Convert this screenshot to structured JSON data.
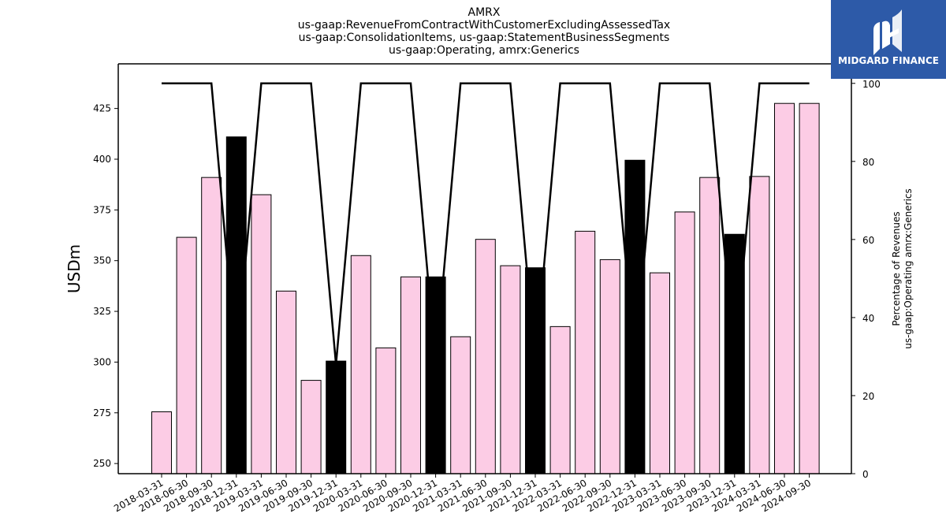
{
  "title_lines": [
    "AMRX",
    "us-gaap:RevenueFromContractWithCustomerExcludingAssessedTax",
    "us-gaap:ConsolidationItems, us-gaap:StatementBusinessSegments",
    "us-gaap:Operating, amrx:Generics"
  ],
  "brand": {
    "name": "MIDGARD FINANCE",
    "color": "#2d5aa8"
  },
  "chart_data": {
    "type": "bar",
    "categories": [
      "2018-03-31",
      "2018-06-30",
      "2018-09-30",
      "2018-12-31",
      "2019-03-31",
      "2019-06-30",
      "2019-09-30",
      "2019-12-31",
      "2020-03-31",
      "2020-06-30",
      "2020-09-30",
      "2020-12-31",
      "2021-03-31",
      "2021-06-30",
      "2021-09-30",
      "2021-12-31",
      "2022-03-31",
      "2022-06-30",
      "2022-09-30",
      "2022-12-31",
      "2023-03-31",
      "2023-06-30",
      "2023-09-30",
      "2023-12-31",
      "2024-03-31",
      "2024-06-30",
      "2024-09-30"
    ],
    "values": [
      275.5,
      361.5,
      391,
      411,
      382.5,
      335,
      291,
      300.5,
      352.5,
      307,
      342,
      342,
      312.5,
      360.5,
      347.5,
      346.5,
      317.5,
      364.5,
      350.5,
      399.5,
      344,
      374,
      391,
      363,
      391.5,
      427.5,
      427.5
    ],
    "bar_highlight": [
      false,
      false,
      false,
      true,
      false,
      false,
      false,
      true,
      false,
      false,
      false,
      true,
      false,
      false,
      false,
      true,
      false,
      false,
      false,
      true,
      false,
      false,
      false,
      true,
      false,
      false,
      false
    ],
    "bar_colors": {
      "normal": "#fccce5",
      "highlight": "#000000",
      "edge": "#000000"
    },
    "line_series": {
      "values": [
        100,
        100,
        100,
        28,
        100,
        100,
        100,
        28,
        100,
        100,
        100,
        28,
        100,
        100,
        100,
        28,
        100,
        100,
        100,
        28,
        100,
        100,
        100,
        28,
        100,
        100,
        100
      ],
      "color": "#000000"
    },
    "ylabel": "USDm",
    "y2label": [
      "Percentage of Revenues",
      "us-gaap:Operating amrx:Generics"
    ],
    "ylim": [
      245,
      447
    ],
    "y2lim": [
      0,
      105
    ],
    "yticks": [
      250,
      275,
      300,
      325,
      350,
      375,
      400,
      425
    ],
    "y2ticks": [
      0,
      20,
      40,
      60,
      80,
      100
    ]
  }
}
